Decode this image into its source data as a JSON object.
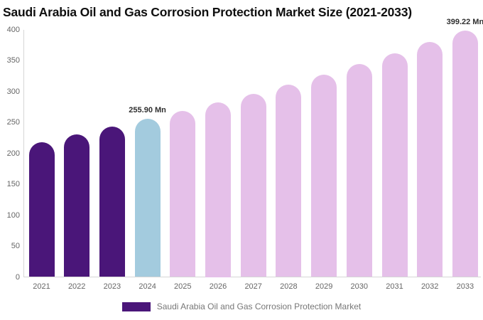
{
  "title": "Saudi Arabia Oil and Gas Corrosion Protection Market Size (2021-2033)",
  "chart_data": {
    "type": "bar",
    "title": "Saudi Arabia Oil and Gas Corrosion Protection Market Size (2021-2033)",
    "categories": [
      "2021",
      "2022",
      "2023",
      "2024",
      "2025",
      "2026",
      "2027",
      "2028",
      "2029",
      "2030",
      "2031",
      "2032",
      "2033"
    ],
    "series": [
      {
        "name": "Saudi Arabia Oil and Gas Corrosion Protection Market",
        "values": [
          218.5,
          230.5,
          243.0,
          255.9,
          268.9,
          282.5,
          296.8,
          311.8,
          327.6,
          344.2,
          361.6,
          379.9,
          399.22
        ],
        "point_colors": [
          "#4a1679",
          "#4a1679",
          "#4a1679",
          "#a3cbde",
          "#e5c0e9",
          "#e5c0e9",
          "#e5c0e9",
          "#e5c0e9",
          "#e5c0e9",
          "#e5c0e9",
          "#e5c0e9",
          "#e5c0e9",
          "#e5c0e9"
        ]
      }
    ],
    "data_labels": [
      {
        "category": "2024",
        "text": "255.90 Mn"
      },
      {
        "category": "2033",
        "text": "399.22 Mn"
      }
    ],
    "xlabel": "",
    "ylabel": "",
    "ylim": [
      0,
      400
    ],
    "yticks": [
      0,
      50,
      100,
      150,
      200,
      250,
      300,
      350,
      400
    ],
    "grid": false,
    "legend_position": "bottom"
  },
  "legend": {
    "swatch_color": "#4a1679",
    "label": "Saudi Arabia Oil and Gas Corrosion Protection Market"
  },
  "colors": {
    "historical_bar": "#4a1679",
    "base_year_bar": "#a3cbde",
    "forecast_bar": "#e5c0e9",
    "axis_line": "#d6d6d6",
    "tick_text": "#666666",
    "data_label_text": "#2f2f2f",
    "title_text": "#0f0f0f",
    "legend_text": "#777777",
    "background": "#ffffff"
  }
}
